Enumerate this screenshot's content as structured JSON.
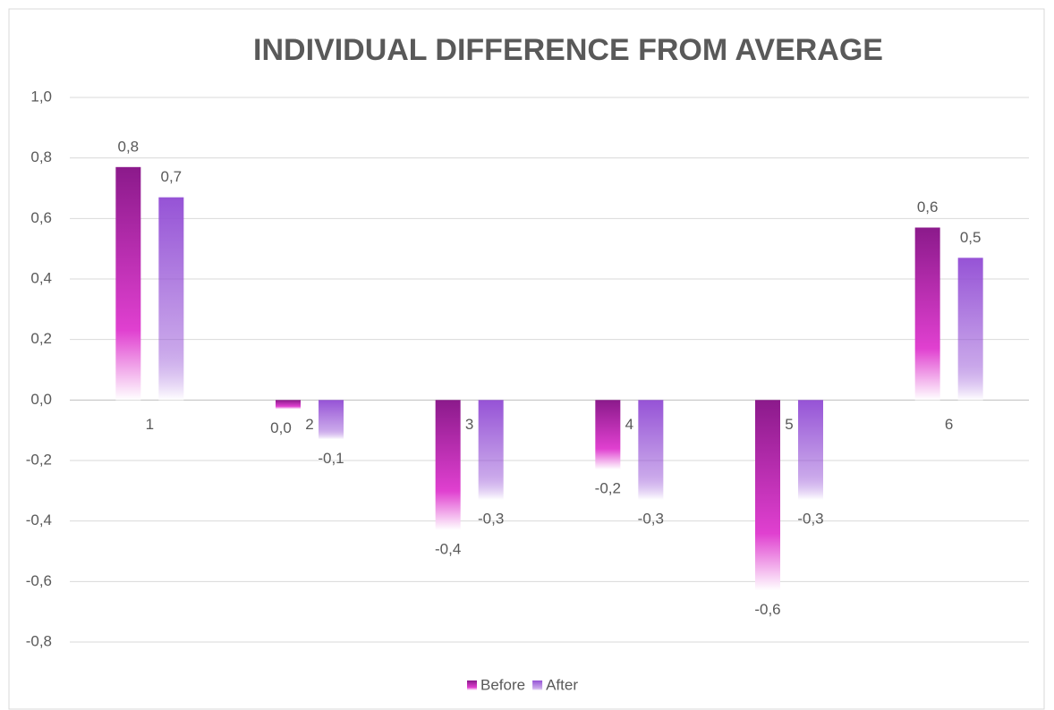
{
  "chart_data": {
    "type": "bar",
    "title": "INDIVIDUAL DIFFERENCE FROM AVERAGE",
    "categories": [
      "1",
      "2",
      "3",
      "4",
      "5",
      "6"
    ],
    "series": [
      {
        "name": "Before",
        "color": "#8b1a8b",
        "values": [
          0.77,
          -0.03,
          -0.43,
          -0.23,
          -0.63,
          0.57
        ],
        "value_labels": [
          "0,8",
          "0,0",
          "-0,4",
          "-0,2",
          "-0,6",
          "0,6"
        ]
      },
      {
        "name": "After",
        "color": "#9653d6",
        "values": [
          0.67,
          -0.13,
          -0.33,
          -0.33,
          -0.33,
          0.47
        ],
        "value_labels": [
          "0,7",
          "-0,1",
          "-0,3",
          "-0,3",
          "-0,3",
          "0,5"
        ]
      }
    ],
    "ylim": [
      -0.8,
      1.0
    ],
    "yticks": [
      {
        "value": -0.8,
        "label": "-0,8"
      },
      {
        "value": -0.6,
        "label": "-0,6"
      },
      {
        "value": -0.4,
        "label": "-0,4"
      },
      {
        "value": -0.2,
        "label": "-0,2"
      },
      {
        "value": 0,
        "label": "0,0"
      },
      {
        "value": 0.2,
        "label": "0,2"
      },
      {
        "value": 0.4,
        "label": "0,4"
      },
      {
        "value": 0.6,
        "label": "0,6"
      },
      {
        "value": 0.8,
        "label": "0,8"
      },
      {
        "value": 1.0,
        "label": "1,0"
      }
    ],
    "grid": true,
    "legend": "bottom"
  }
}
